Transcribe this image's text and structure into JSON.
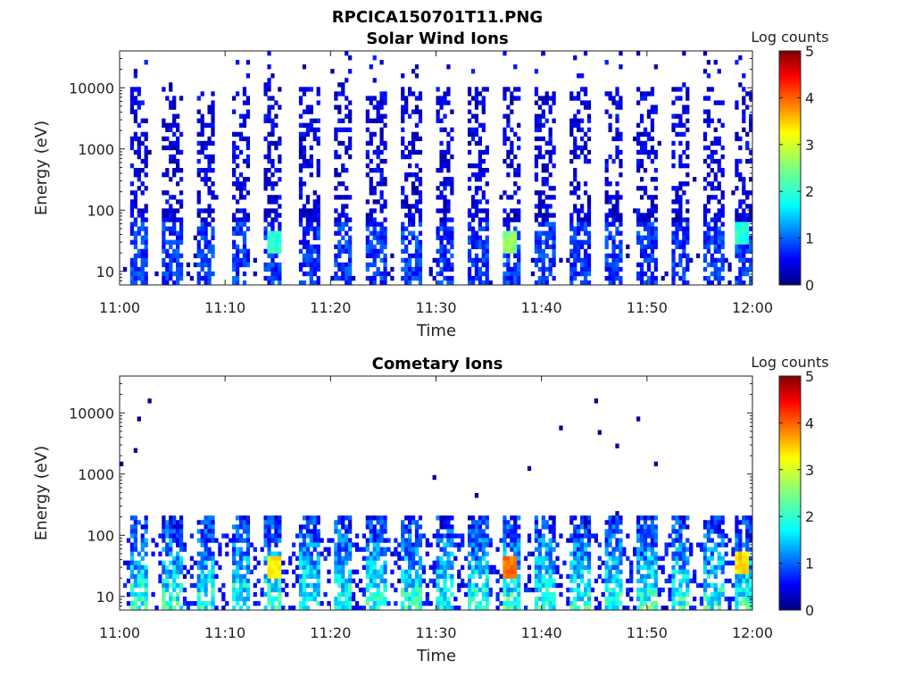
{
  "figure_title": "RPCICA150701T11.PNG",
  "chart_data": [
    {
      "type": "heatmap",
      "title": "Solar Wind Ions",
      "xlabel": "Time",
      "ylabel": "Energy (eV)",
      "x_ticks": [
        "11:00",
        "11:10",
        "11:20",
        "11:30",
        "11:40",
        "11:50",
        "12:00"
      ],
      "x_range": [
        "11:00",
        "12:00"
      ],
      "y_ticks": [
        "10",
        "100",
        "1000",
        "10000"
      ],
      "y_scale": "log",
      "y_range": [
        6,
        40000
      ],
      "colorbar_label": "Log counts",
      "colorbar_ticks": [
        "0",
        "1",
        "2",
        "3",
        "4",
        "5"
      ],
      "colorbar_range": [
        0,
        5
      ],
      "colormap": "jet",
      "sweep_times_min": [
        1.8,
        5.0,
        8.2,
        11.4,
        14.6,
        18.0,
        21.2,
        24.4,
        27.6,
        30.8,
        34.0,
        37.2,
        40.4,
        43.6,
        46.8,
        50.0,
        53.2,
        56.4,
        59.4
      ],
      "peak_cells": [
        {
          "time_min": 14.6,
          "energy_ev": 30,
          "log_counts": 2.3
        },
        {
          "time_min": 37.0,
          "energy_ev": 30,
          "log_counts": 2.8
        },
        {
          "time_min": 59.0,
          "energy_ev": 40,
          "log_counts": 2.2
        }
      ]
    },
    {
      "type": "heatmap",
      "title": "Cometary Ions",
      "xlabel": "Time",
      "ylabel": "Energy (eV)",
      "x_ticks": [
        "11:00",
        "11:10",
        "11:20",
        "11:30",
        "11:40",
        "11:50",
        "12:00"
      ],
      "x_range": [
        "11:00",
        "12:00"
      ],
      "y_ticks": [
        "10",
        "100",
        "1000",
        "10000"
      ],
      "y_scale": "log",
      "y_range": [
        6,
        40000
      ],
      "colorbar_label": "Log counts",
      "colorbar_ticks": [
        "0",
        "1",
        "2",
        "3",
        "4",
        "5"
      ],
      "colorbar_range": [
        0,
        5
      ],
      "colormap": "jet",
      "sweep_times_min": [
        1.8,
        5.0,
        8.2,
        11.4,
        14.6,
        18.0,
        21.2,
        24.4,
        27.6,
        30.8,
        34.0,
        37.2,
        40.4,
        43.6,
        46.8,
        50.0,
        53.2,
        56.4,
        59.4
      ],
      "peak_cells": [
        {
          "time_min": 14.6,
          "energy_ev": 30,
          "log_counts": 3.4
        },
        {
          "time_min": 37.0,
          "energy_ev": 30,
          "log_counts": 4.0
        },
        {
          "time_min": 59.0,
          "energy_ev": 35,
          "log_counts": 3.5
        }
      ]
    }
  ]
}
